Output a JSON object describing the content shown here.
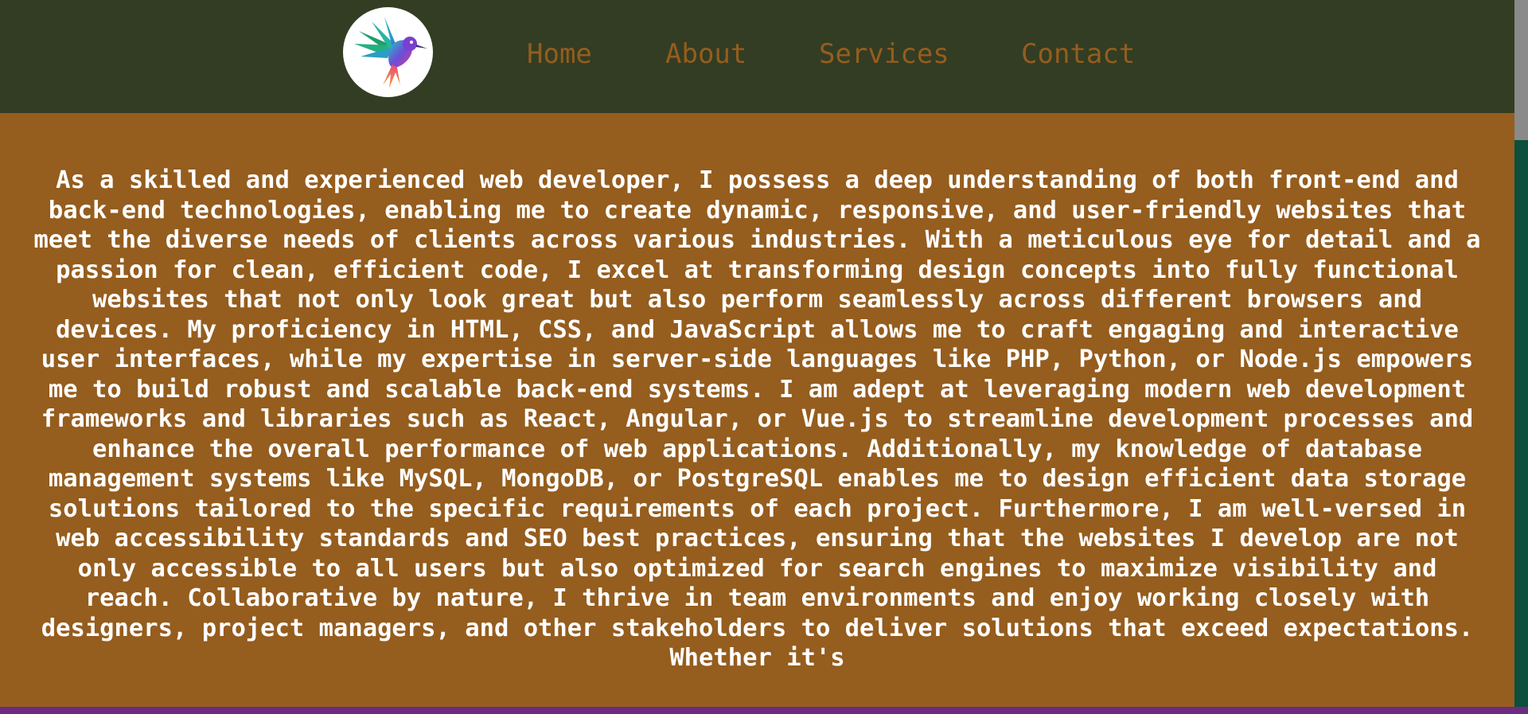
{
  "nav": {
    "logo": "hummingbird-logo",
    "links": [
      "Home",
      "About",
      "Services",
      "Contact"
    ]
  },
  "main": {
    "paragraph": "As a skilled and experienced web developer, I possess a deep understanding of both front-end and back-end technologies, enabling me to create dynamic, responsive, and user-friendly websites that meet the diverse needs of clients across various industries. With a meticulous eye for detail and a passion for clean, efficient code, I excel at transforming design concepts into fully functional websites that not only look great but also perform seamlessly across different browsers and devices. My proficiency in HTML, CSS, and JavaScript allows me to craft engaging and interactive user interfaces, while my expertise in server-side languages like PHP, Python, or Node.js empowers me to build robust and scalable back-end systems. I am adept at leveraging modern web development frameworks and libraries such as React, Angular, or Vue.js to streamline development processes and enhance the overall performance of web applications. Additionally, my knowledge of database management systems like MySQL, MongoDB, or PostgreSQL enables me to design efficient data storage solutions tailored to the specific requirements of each project. Furthermore, I am well-versed in web accessibility standards and SEO best practices, ensuring that the websites I develop are not only accessible to all users but also optimized for search engines to maximize visibility and reach. Collaborative by nature, I thrive in team environments and enjoy working closely with designers, project managers, and other stakeholders to deliver solutions that exceed expectations. Whether it's"
  },
  "colors": {
    "navbar_bg": "#333d23",
    "content_bg": "#955d1e",
    "link_color": "#955d1e",
    "text_color": "#ffffff",
    "bottom_strip": "#6c2b80",
    "scrollbar_track": "#0c4f3e",
    "scrollbar_thumb": "#8a8a8a"
  }
}
